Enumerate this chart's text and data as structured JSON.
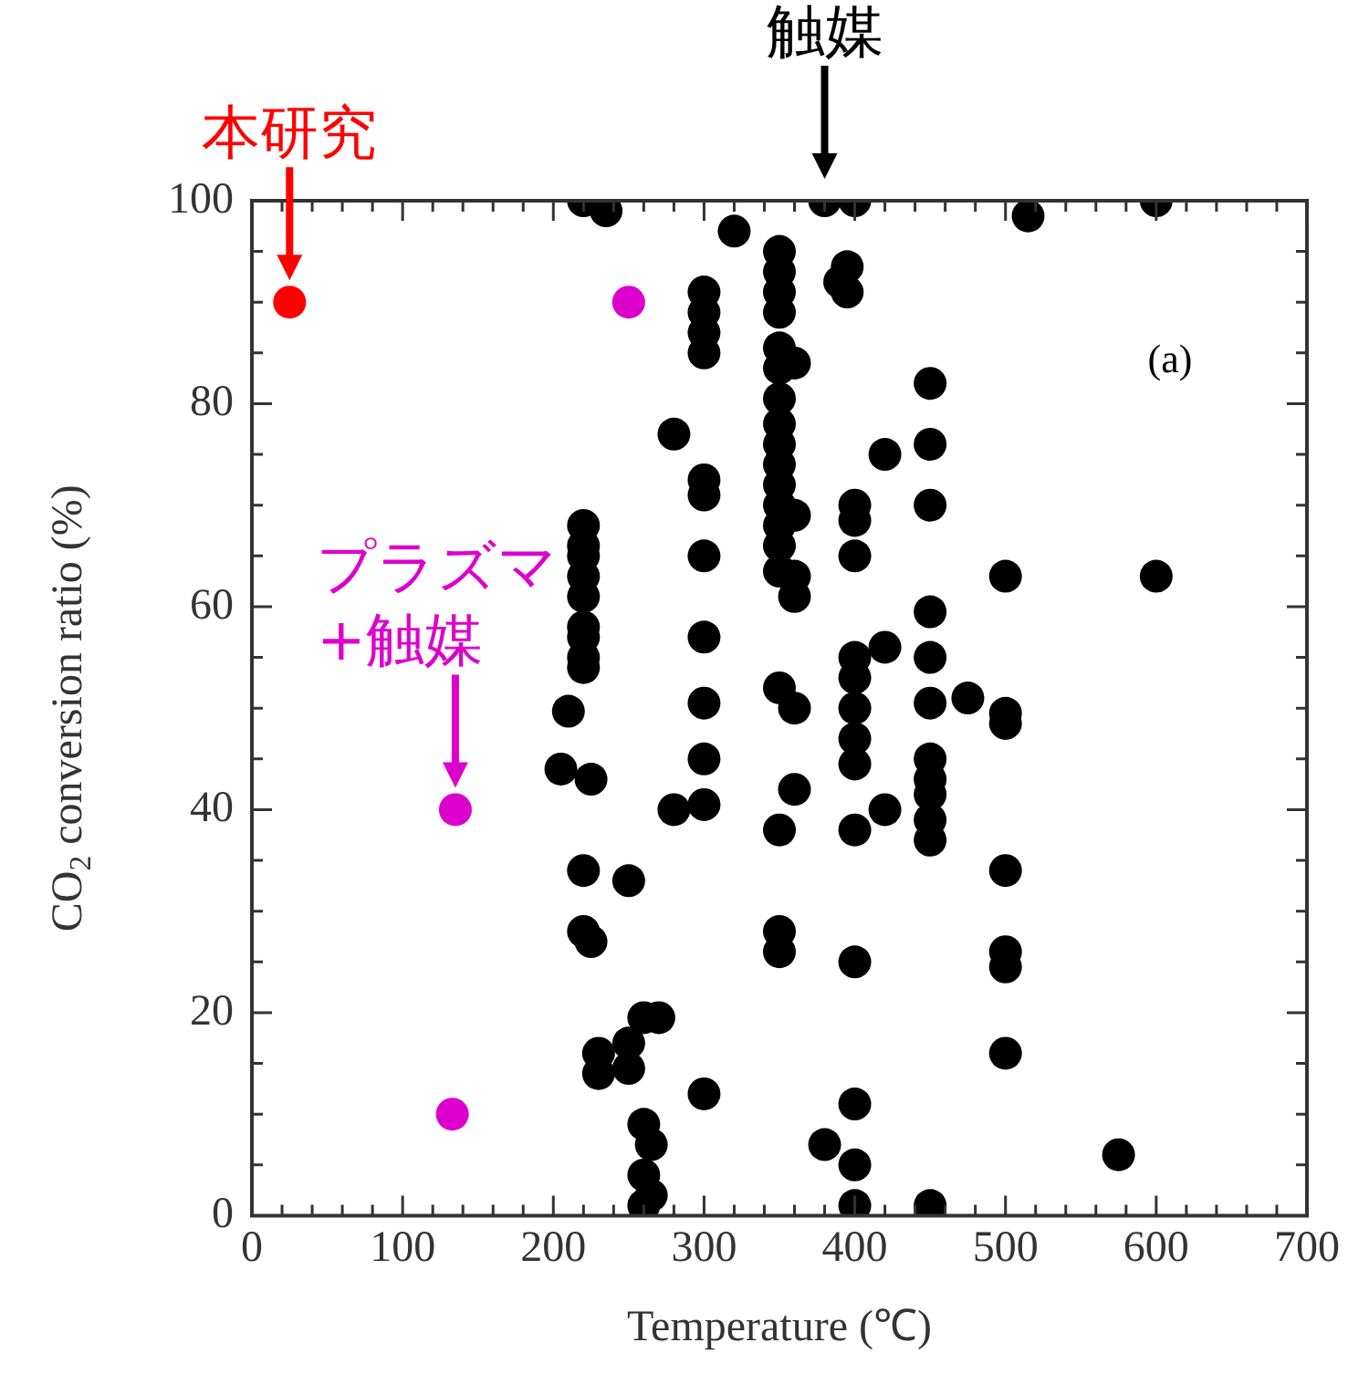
{
  "chart_data": {
    "type": "scatter",
    "xlabel": "Temperature (℃)",
    "ylabel": "CO$_{2}$ conversion ratio (%)",
    "annotations": [
      "(a)"
    ],
    "xlim": [
      0,
      700
    ],
    "ylim": [
      0,
      100
    ],
    "xticks": [
      0,
      {
        "value": 20,
        "label": null
      },
      {
        "value": 40,
        "label": null
      },
      {
        "value": 60,
        "label": null
      },
      {
        "value": 80,
        "label": null
      },
      100,
      {
        "value": 120,
        "label": null
      },
      {
        "value": 140,
        "label": null
      },
      {
        "value": 160,
        "label": null
      },
      {
        "value": 180,
        "label": null
      },
      200,
      {
        "value": 220,
        "label": null
      },
      {
        "value": 240,
        "label": null
      },
      {
        "value": 260,
        "label": null
      },
      {
        "value": 280,
        "label": null
      },
      300,
      {
        "value": 320,
        "label": null
      },
      {
        "value": 340,
        "label": null
      },
      {
        "value": 360,
        "label": null
      },
      {
        "value": 380,
        "label": null
      },
      400,
      {
        "value": 420,
        "label": null
      },
      {
        "value": 440,
        "label": null
      },
      {
        "value": 460,
        "label": null
      },
      {
        "value": 480,
        "label": null
      },
      500,
      {
        "value": 520,
        "label": null
      },
      {
        "value": 540,
        "label": null
      },
      {
        "value": 560,
        "label": null
      },
      {
        "value": 580,
        "label": null
      },
      600,
      {
        "value": 620,
        "label": null
      },
      {
        "value": 640,
        "label": null
      },
      {
        "value": 660,
        "label": null
      },
      {
        "value": 680,
        "label": null
      },
      700
    ],
    "yticks": [
      0,
      {
        "value": 5,
        "label": null
      },
      {
        "value": 10,
        "label": null
      },
      {
        "value": 15,
        "label": null
      },
      20,
      {
        "value": 25,
        "label": null
      },
      {
        "value": 30,
        "label": null
      },
      {
        "value": 35,
        "label": null
      },
      40,
      {
        "value": 45,
        "label": null
      },
      {
        "value": 50,
        "label": null
      },
      {
        "value": 55,
        "label": null
      },
      60,
      {
        "value": 65,
        "label": null
      },
      {
        "value": 70,
        "label": null
      },
      {
        "value": 75,
        "label": null
      },
      80,
      {
        "value": 85,
        "label": null
      },
      {
        "value": 90,
        "label": null
      },
      {
        "value": 95,
        "label": null
      },
      100
    ],
    "grid": false,
    "legend": false,
    "marker": "circle",
    "series": [
      {
        "name": "触媒",
        "color": "#000000",
        "x": [
          380,
          220,
          235,
          220,
          220,
          220,
          220,
          220,
          220,
          220,
          220,
          220,
          210,
          205,
          225,
          220,
          220,
          225,
          230,
          230,
          250,
          260,
          250,
          270,
          250,
          260,
          265,
          260,
          265,
          260,
          280,
          280,
          300,
          300,
          300,
          300,
          300,
          300,
          300,
          300,
          300,
          300,
          300,
          300,
          320,
          350,
          350,
          350,
          350,
          350,
          350,
          350,
          350,
          350,
          350,
          350,
          350,
          350,
          350,
          350,
          350,
          350,
          350,
          350,
          360,
          360,
          360,
          360,
          360,
          360,
          380,
          395,
          390,
          395,
          400,
          400,
          400,
          400,
          400,
          400,
          400,
          400,
          400,
          400,
          400,
          400,
          400,
          400,
          420,
          420,
          420,
          450,
          450,
          450,
          450,
          450,
          450,
          450,
          450,
          450,
          450,
          450,
          450,
          475,
          500,
          500,
          500,
          500,
          500,
          500,
          500,
          515,
          575,
          600,
          600
        ],
        "values": [
          100,
          100,
          99,
          68,
          66,
          65,
          63,
          61,
          58,
          57,
          55,
          54,
          49.7,
          44,
          43,
          34,
          28,
          27,
          16,
          14,
          33,
          19.5,
          17,
          19.5,
          14.5,
          9,
          7,
          4,
          2,
          1,
          77,
          40,
          91,
          89,
          87,
          85,
          72.5,
          71,
          65,
          57,
          50.5,
          45,
          40.5,
          12,
          97,
          95,
          93,
          91,
          89,
          85.5,
          83.5,
          80.5,
          78,
          76,
          74,
          72,
          70,
          68,
          66,
          63.5,
          52,
          38,
          28,
          26,
          61,
          84,
          69,
          63,
          50,
          42,
          7,
          93.5,
          92,
          91,
          100,
          70,
          68.5,
          65,
          55,
          53,
          50,
          47,
          44.5,
          38,
          25,
          11,
          5,
          1,
          75,
          56,
          40,
          82,
          76,
          70,
          59.5,
          55,
          50.5,
          45,
          43,
          41.5,
          39,
          37,
          1,
          51,
          63,
          49.5,
          48.5,
          34,
          26,
          24.5,
          16,
          98.5,
          6,
          100,
          63
        ]
      },
      {
        "name": "プラズマ\n+触媒",
        "color": "#dd00cc",
        "x": [
          135,
          250,
          133
        ],
        "values": [
          40,
          90,
          10
        ]
      },
      {
        "name": "本研究",
        "color": "#ff0000",
        "x": [
          25
        ],
        "values": [
          90
        ]
      }
    ]
  }
}
